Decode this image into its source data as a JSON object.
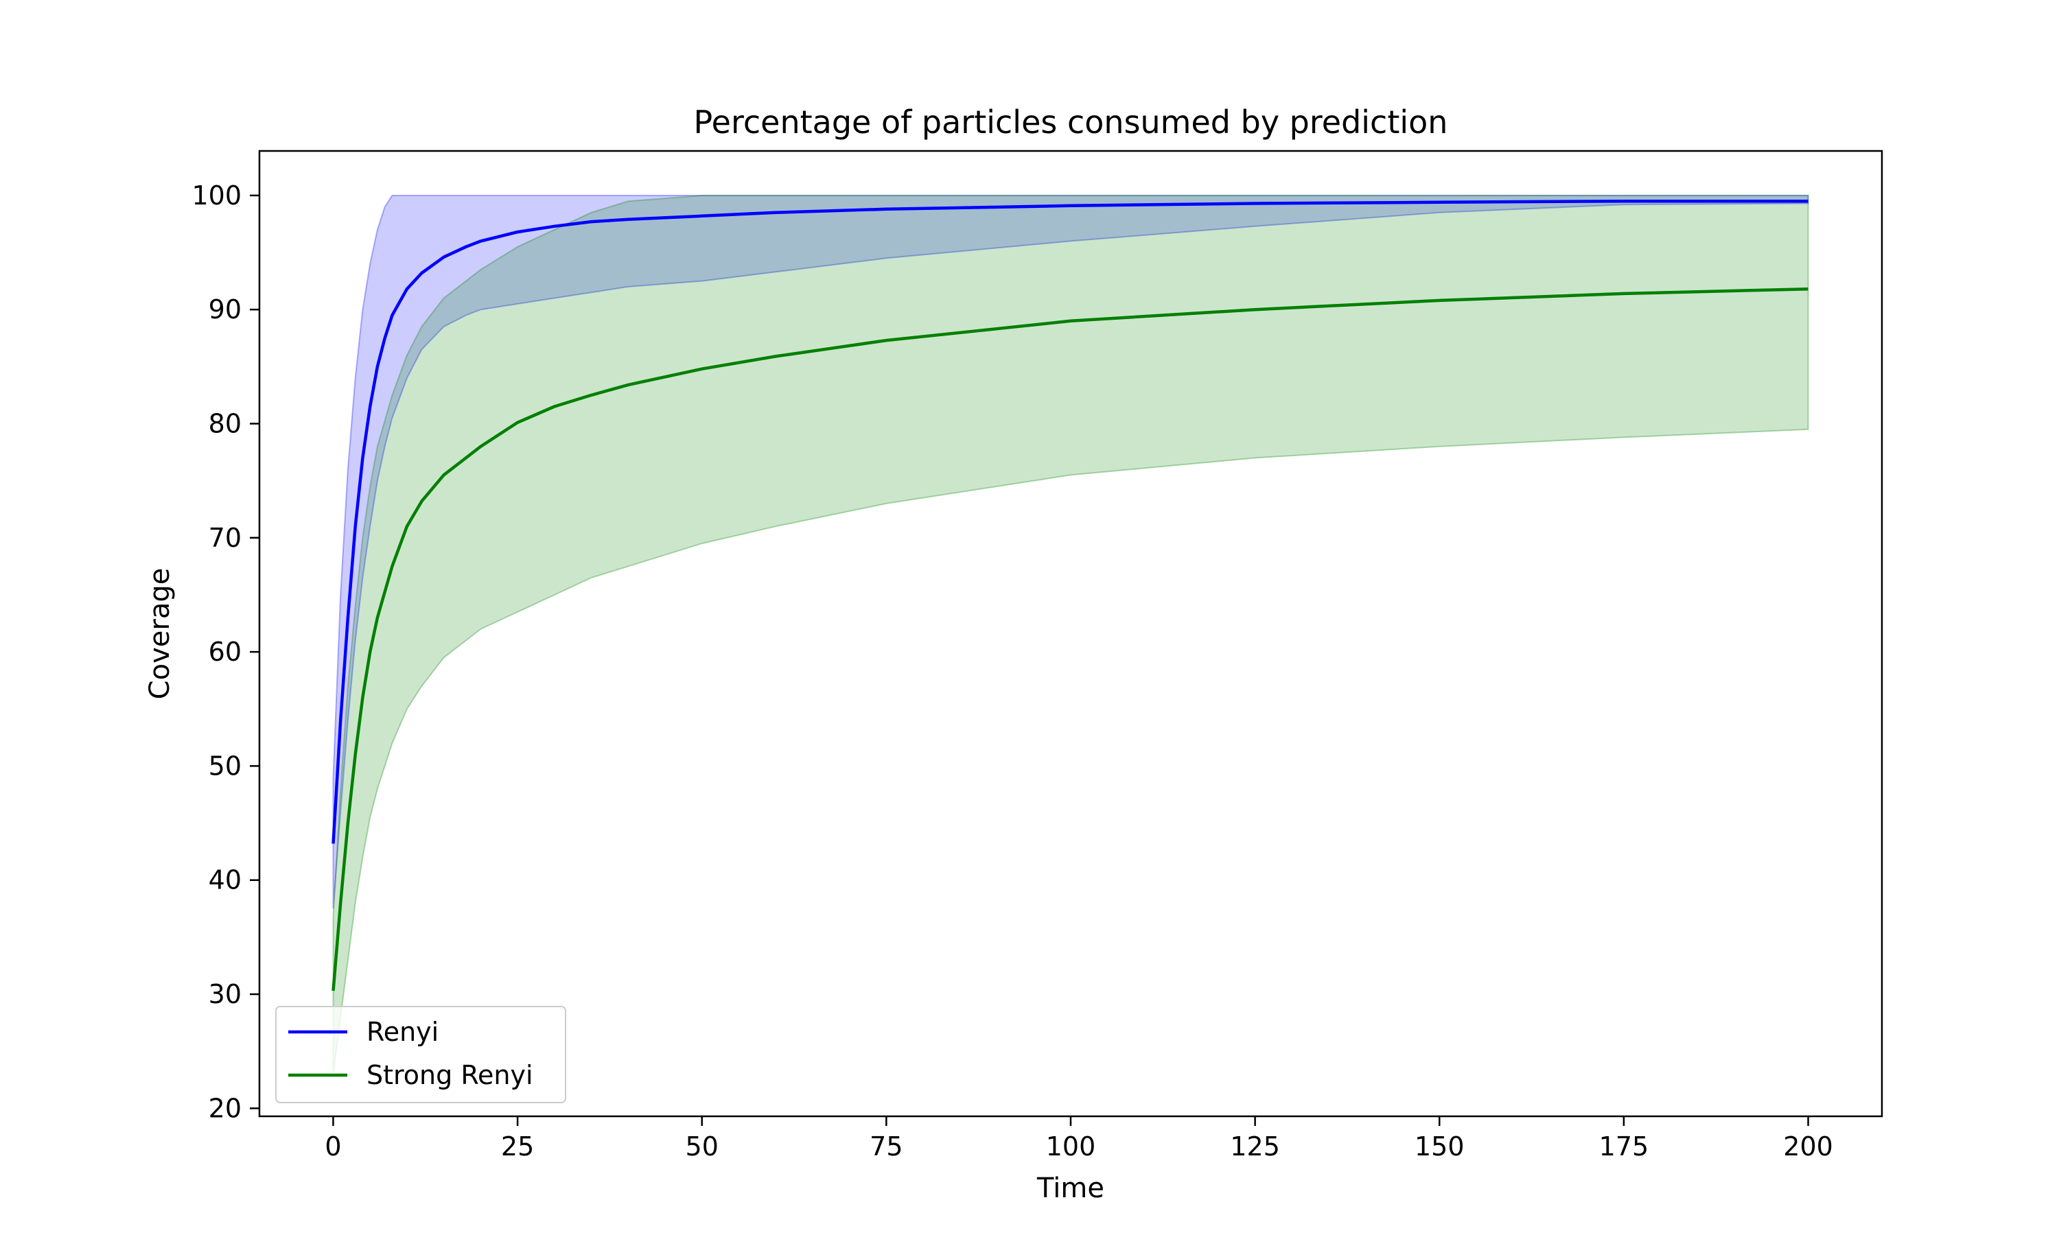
{
  "chart_data": {
    "type": "line",
    "title": "Percentage of particles consumed by prediction",
    "xlabel": "Time",
    "ylabel": "Coverage",
    "xlim": [
      -10,
      210
    ],
    "ylim": [
      19.3,
      103.9
    ],
    "xticks": [
      0,
      25,
      50,
      75,
      100,
      125,
      150,
      175,
      200
    ],
    "yticks": [
      20,
      30,
      40,
      50,
      60,
      70,
      80,
      90,
      100
    ],
    "grid": false,
    "legend_position": "lower-left",
    "series": [
      {
        "name": "Renyi",
        "color": "#0000ff",
        "fill_color": "#0000ff",
        "fill_opacity": 0.2,
        "x": [
          0,
          1,
          2,
          3,
          4,
          5,
          6,
          7,
          8,
          10,
          12,
          15,
          18,
          20,
          25,
          30,
          35,
          40,
          50,
          60,
          75,
          100,
          125,
          150,
          175,
          200
        ],
        "mean": [
          43.2,
          54,
          63,
          71,
          77,
          81.5,
          85,
          87.5,
          89.5,
          91.8,
          93.2,
          94.6,
          95.5,
          96,
          96.8,
          97.3,
          97.7,
          97.9,
          98.2,
          98.5,
          98.8,
          99.1,
          99.3,
          99.4,
          99.5,
          99.5
        ],
        "lower": [
          37.5,
          46,
          54,
          61,
          66.5,
          71,
          75,
          78,
          80.5,
          84,
          86.5,
          88.5,
          89.5,
          90,
          90.5,
          91,
          91.5,
          92,
          92.5,
          93.3,
          94.5,
          96,
          97.3,
          98.5,
          99.2,
          99.3
        ],
        "upper": [
          49,
          65,
          76,
          84,
          90,
          94,
          97,
          99,
          100,
          100,
          100,
          100,
          100,
          100,
          100,
          100,
          100,
          100,
          100,
          100,
          100,
          100,
          100,
          100,
          100,
          100
        ]
      },
      {
        "name": "Strong Renyi",
        "color": "#008000",
        "fill_color": "#008000",
        "fill_opacity": 0.2,
        "x": [
          0,
          1,
          2,
          3,
          4,
          5,
          6,
          8,
          10,
          12,
          15,
          18,
          20,
          25,
          30,
          35,
          40,
          50,
          60,
          75,
          100,
          125,
          150,
          175,
          200
        ],
        "mean": [
          30.3,
          38,
          45,
          51,
          56,
          60,
          63,
          67.5,
          71,
          73.2,
          75.5,
          77,
          78,
          80.1,
          81.5,
          82.5,
          83.4,
          84.8,
          85.9,
          87.3,
          89,
          90,
          90.8,
          91.4,
          91.8
        ],
        "lower": [
          23,
          28,
          33,
          38,
          42,
          45.5,
          48,
          52,
          55,
          57,
          59.5,
          61,
          62,
          63.5,
          65,
          66.5,
          67.5,
          69.5,
          71,
          73,
          75.5,
          77,
          78,
          78.8,
          79.5
        ],
        "upper": [
          36.8,
          48,
          57,
          64,
          70,
          74.5,
          78,
          82.5,
          86,
          88.5,
          91,
          92.5,
          93.5,
          95.5,
          97,
          98.5,
          99.5,
          100,
          100,
          100,
          100,
          100,
          100,
          100,
          100
        ]
      }
    ]
  }
}
